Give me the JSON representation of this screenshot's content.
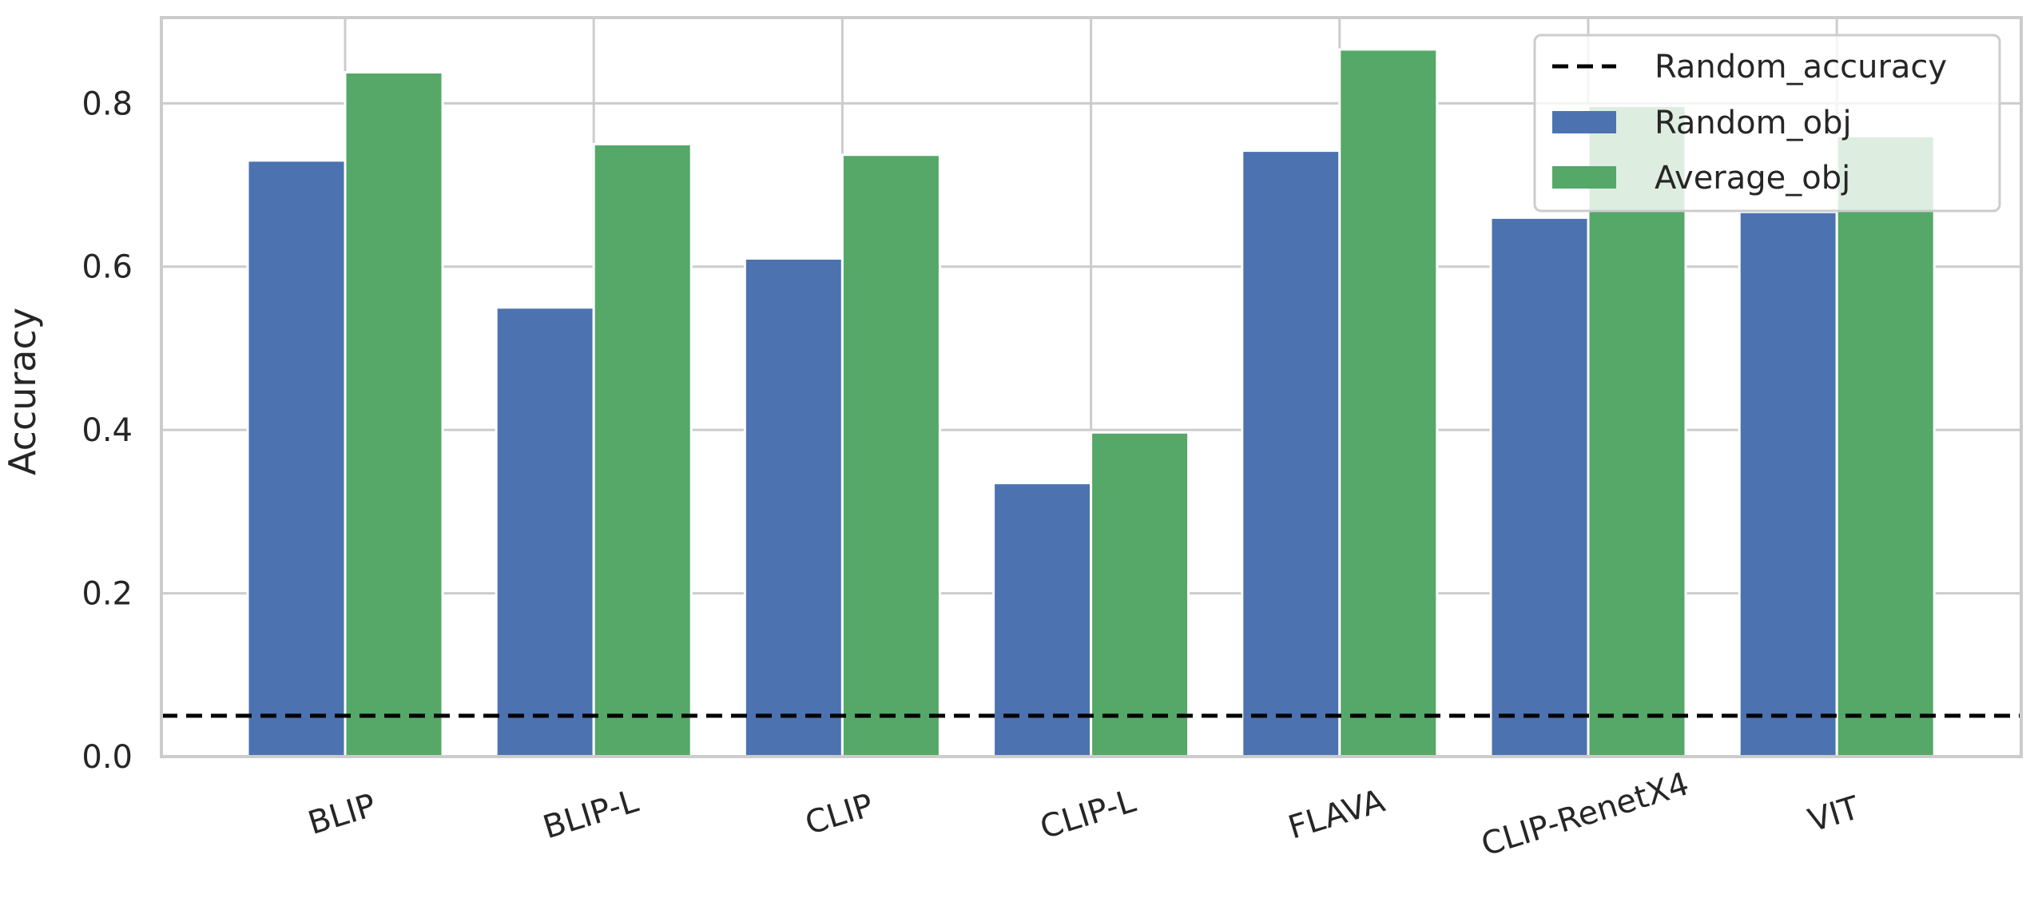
{
  "chart_data": {
    "type": "bar",
    "title": "",
    "xlabel": "",
    "ylabel": "Accuracy",
    "categories": [
      "BLIP",
      "BLIP-L",
      "CLIP",
      "CLIP-L",
      "FLAVA",
      "CLIP-RenetX4",
      "VIT"
    ],
    "series": [
      {
        "name": "Random_obj",
        "color": "#4c72b0",
        "values": [
          0.73,
          0.55,
          0.61,
          0.335,
          0.742,
          0.66,
          0.667
        ]
      },
      {
        "name": "Average_obj",
        "color": "#55a868",
        "values": [
          0.838,
          0.75,
          0.737,
          0.397,
          0.866,
          0.797,
          0.76
        ]
      }
    ],
    "reference_line": {
      "name": "Random_accuracy",
      "value": 0.05,
      "style": "dashed",
      "color": "#000000"
    },
    "ylim": [
      0,
      0.905
    ],
    "yticks": [
      "0.0",
      "0.2",
      "0.4",
      "0.6",
      "0.8"
    ],
    "ytick_values": [
      0,
      0.2,
      0.4,
      0.6,
      0.8
    ],
    "grid": true,
    "legend_position": "top-right",
    "xtick_rotation": "rotated"
  }
}
